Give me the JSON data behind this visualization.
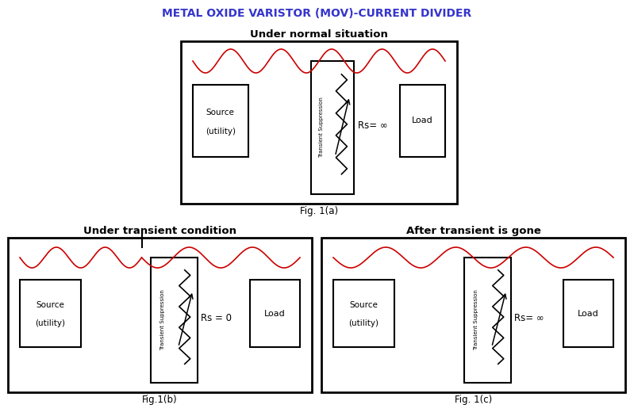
{
  "title": "METAL OXIDE VARISTOR (MOV)-CURRENT DIVIDER",
  "title_color": "#3535cc",
  "bg_color": "#ffffff",
  "fig1a_title": "Under normal situation",
  "fig1b_title": "Under transient condition",
  "fig1c_title": "After transient is gone",
  "fig1a_label": "Fig. 1(a)",
  "fig1b_label": "Fig.1(b)",
  "fig1c_label": "Fig. 1(c)",
  "rs_normal": "Rs= ∞",
  "rs_transient": "Rs = 0",
  "rs_after": "Rs= ∞",
  "wave_color": "#cc0000",
  "line_color": "#000000",
  "text_color": "#000000",
  "wave_amplitude": 14,
  "wave_freq_a": 5,
  "wave_freq_b1": 3,
  "wave_freq_b2": 3,
  "wave_freq_c": 4
}
